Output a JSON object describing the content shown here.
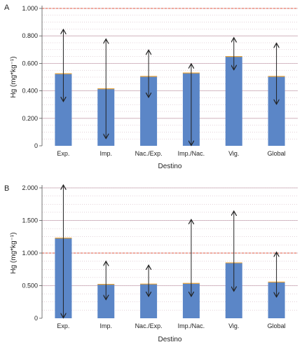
{
  "colors": {
    "bar": "#5b86c7",
    "grid": "#c9a7b4",
    "threshold": "#e0553c",
    "marker": "#e8a33a",
    "arrow": "#222222",
    "axis": "#555555"
  },
  "chart_data": [
    {
      "type": "bar",
      "panel_label": "A",
      "xlabel": "Destino",
      "ylabel": "Hg (mg*kg⁻¹)",
      "ylim": [
        0,
        1.0
      ],
      "yticks": [
        "0",
        "0.200",
        "0.400",
        "0.600",
        "0.800",
        "1.000"
      ],
      "yticks_values": [
        0,
        0.2,
        0.4,
        0.6,
        0.8,
        1.0
      ],
      "threshold": 1.0,
      "grid": true,
      "categories": [
        "Exp.",
        "Imp.",
        "Nac./Exp.",
        "Imp./Nac.",
        "Vig.",
        "Global"
      ],
      "values": [
        0.525,
        0.415,
        0.505,
        0.53,
        0.65,
        0.505
      ],
      "range_max": [
        0.85,
        0.78,
        0.7,
        0.6,
        0.79,
        0.75
      ],
      "range_min": [
        0.32,
        0.05,
        0.35,
        0.0,
        0.55,
        0.3
      ]
    },
    {
      "type": "bar",
      "panel_label": "B",
      "xlabel": "Destino",
      "ylabel": "Hg (mg*kg⁻¹)",
      "ylim": [
        0,
        2.0
      ],
      "yticks": [
        "0",
        "0.500",
        "1.000",
        "1.500",
        "2.000"
      ],
      "yticks_values": [
        0,
        0.5,
        1.0,
        1.5,
        2.0
      ],
      "threshold": 1.0,
      "grid": true,
      "categories": [
        "Exp.",
        "Imp.",
        "Nac./Exp.",
        "Imp./Nac.",
        "Vig.",
        "Global"
      ],
      "values": [
        1.23,
        0.52,
        0.525,
        0.535,
        0.85,
        0.555
      ],
      "range_max": [
        2.05,
        0.88,
        0.82,
        1.52,
        1.65,
        1.02
      ],
      "range_min": [
        0.0,
        0.28,
        0.33,
        0.33,
        0.41,
        0.32
      ]
    }
  ]
}
